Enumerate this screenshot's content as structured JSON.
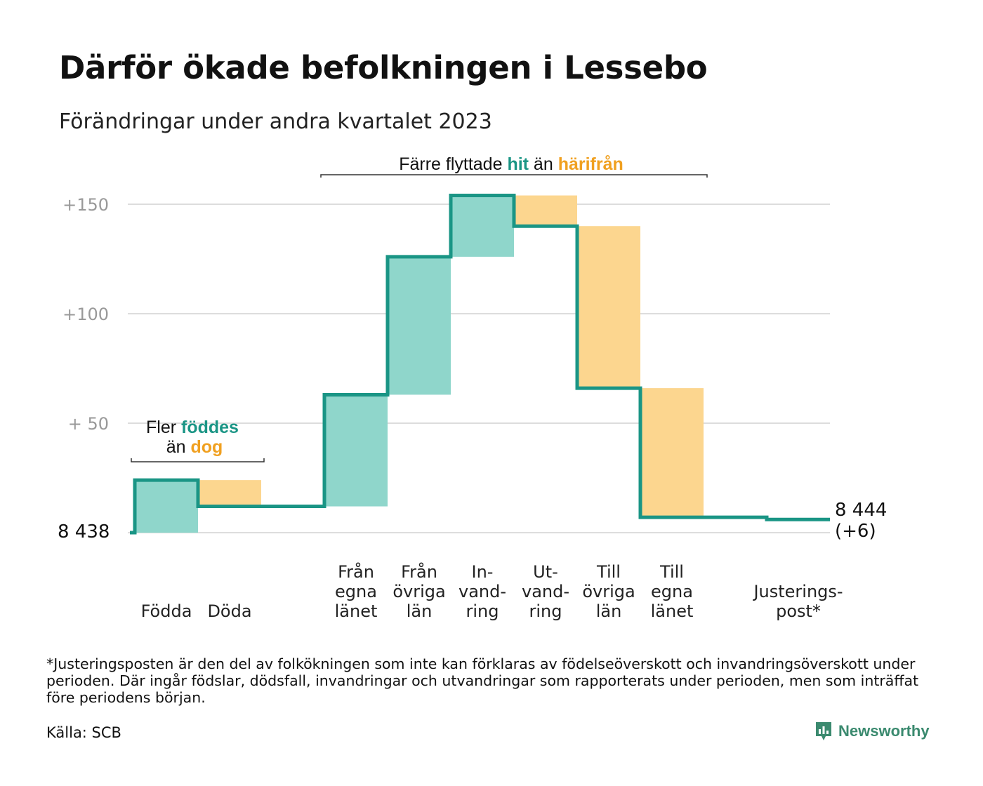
{
  "title": "Därför ökade befolkningen i Lessebo",
  "subtitle": "Förändringar under andra kvartalet 2023",
  "footnote": "*Justeringsposten är den del av folkökningen som inte kan förklaras av födelseöverskott och invandringsöverskott under perioden. Där ingår födslar, dödsfall, invandringar och utvandringar som rapporterats under perioden, men som inträffat före periodens början.",
  "source": "Källa: SCB",
  "brand": "Newsworthy",
  "colors": {
    "increase": "#8fd6cb",
    "decrease": "#fcd68f",
    "line": "#1a9585",
    "hit_text": "#1a9585",
    "away_text": "#f0a020",
    "grid": "#dddddd",
    "tick_text": "#999999"
  },
  "chart_data": {
    "type": "waterfall",
    "start_value": 8438,
    "start_label": "8  438",
    "end_label": [
      "8 444",
      "(+6)"
    ],
    "y_ticks": [
      {
        "value": 150,
        "label": "+150"
      },
      {
        "value": 100,
        "label": "+100"
      },
      {
        "value": 50,
        "label": "+  50"
      },
      {
        "value": 0,
        "label": ""
      }
    ],
    "y_range": [
      0,
      155
    ],
    "steps": [
      {
        "label": [
          "",
          "",
          "Födda"
        ],
        "change": 24
      },
      {
        "label": [
          "",
          "",
          "Döda"
        ],
        "change": -12
      },
      {
        "label": [
          "",
          "",
          ""
        ],
        "change": 0
      },
      {
        "label": [
          "Från",
          "egna",
          "länet"
        ],
        "change": 51
      },
      {
        "label": [
          "Från",
          "övriga",
          "län"
        ],
        "change": 63
      },
      {
        "label": [
          "In-",
          "vand-",
          "ring"
        ],
        "change": 28
      },
      {
        "label": [
          "Ut-",
          "vand-",
          "ring"
        ],
        "change": -14
      },
      {
        "label": [
          "Till",
          "övriga",
          "län"
        ],
        "change": -74
      },
      {
        "label": [
          "Till",
          "egna",
          "länet"
        ],
        "change": -59
      },
      {
        "label": [
          "",
          "",
          ""
        ],
        "change": 0
      },
      {
        "label": [
          "",
          "Justerings-",
          "post*"
        ],
        "change": -1
      }
    ],
    "annotations": {
      "births_deaths": {
        "line1": [
          "Fler ",
          "föddes"
        ],
        "line2": [
          "än ",
          "dog"
        ]
      },
      "migration": [
        "Färre flyttade ",
        "hit",
        " än ",
        "härifrån"
      ]
    }
  }
}
